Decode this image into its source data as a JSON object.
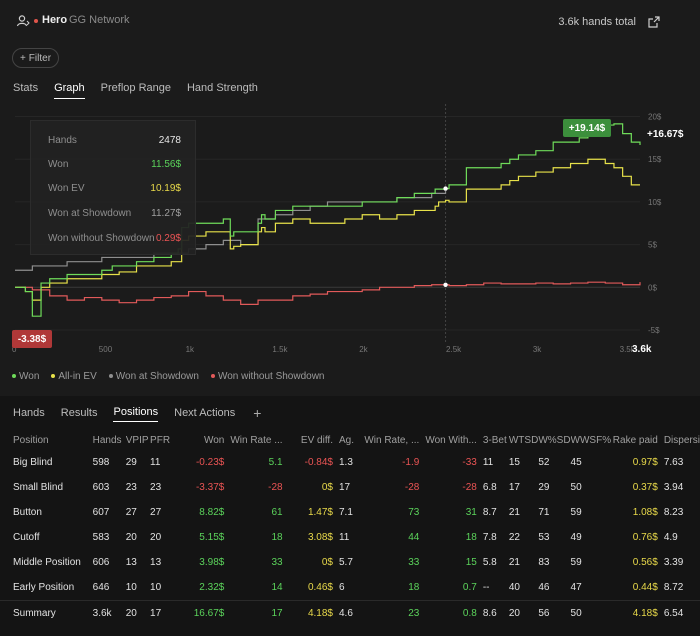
{
  "header": {
    "player": "Hero",
    "network": "GG Network",
    "hands_total": "3.6k hands total"
  },
  "filter_label": "Filter",
  "tabs": [
    "Stats",
    "Graph",
    "Preflop Range",
    "Hand Strength"
  ],
  "active_tab": "Graph",
  "tooltip": [
    {
      "label": "Hands",
      "value": "2478",
      "color": "#e6e6e6"
    },
    {
      "label": "Won",
      "value": "11.56$",
      "color": "#5bd35b"
    },
    {
      "label": "Won EV",
      "value": "10.19$",
      "color": "#e8d94a"
    },
    {
      "label": "Won at Showdown",
      "value": "11.27$",
      "color": "#a0a0a0"
    },
    {
      "label": "Won without Showdown",
      "value": "0.29$",
      "color": "#ea5454"
    }
  ],
  "chart_data": {
    "type": "line",
    "x_ticks": [
      "0",
      "500",
      "1k",
      "1.5k",
      "2k",
      "2.5k",
      "3k",
      "3.5k",
      "3.6k"
    ],
    "y_ticks": [
      "20$",
      "15$",
      "10$",
      "5$",
      "0$",
      "-5$"
    ],
    "ylim": [
      -5,
      21
    ],
    "xlim": [
      0,
      3600
    ],
    "min_label": "-3.38$",
    "max_label": "+19.14$",
    "last_label": "+16.67$",
    "series": [
      {
        "name": "Won",
        "color": "#6fdc5a",
        "x": [
          0,
          60,
          100,
          150,
          200,
          300,
          400,
          500,
          560,
          600,
          700,
          800,
          900,
          940,
          960,
          1000,
          1100,
          1200,
          1240,
          1260,
          1300,
          1400,
          1420,
          1440,
          1500,
          1600,
          1700,
          1800,
          1900,
          2000,
          2100,
          2200,
          2300,
          2400,
          2420,
          2440,
          2480,
          2500,
          2600,
          2700,
          2800,
          2850,
          2900,
          3000,
          3100,
          3200,
          3250,
          3300,
          3400,
          3450,
          3500,
          3550,
          3600
        ],
        "y": [
          0,
          -0.5,
          -3.38,
          0.5,
          1,
          1.5,
          1.5,
          2,
          2.5,
          2.5,
          3,
          3.5,
          4,
          4.5,
          7,
          7.5,
          7.5,
          8,
          6,
          6.5,
          6.5,
          7.5,
          8.5,
          8,
          9,
          9.5,
          9.5,
          9.5,
          9.5,
          10,
          10,
          10.5,
          11,
          11,
          11.5,
          11.5,
          11.56,
          12,
          14,
          14,
          14.5,
          15,
          15.5,
          16,
          17,
          17,
          17.5,
          19.14,
          19,
          19.14,
          18,
          17,
          16.67
        ]
      },
      {
        "name": "All-in EV",
        "color": "#e8e24a",
        "x": [
          0,
          60,
          100,
          150,
          200,
          300,
          400,
          500,
          560,
          600,
          700,
          800,
          900,
          940,
          960,
          1000,
          1100,
          1200,
          1240,
          1260,
          1300,
          1400,
          1420,
          1440,
          1500,
          1600,
          1700,
          1800,
          1900,
          2000,
          2100,
          2200,
          2300,
          2400,
          2420,
          2440,
          2480,
          2500,
          2600,
          2700,
          2800,
          2850,
          2900,
          3000,
          3100,
          3200,
          3250,
          3300,
          3400,
          3450,
          3500,
          3550,
          3600
        ],
        "y": [
          0,
          -0.5,
          -1.5,
          0,
          0.5,
          1,
          1,
          1.5,
          1.5,
          1.8,
          2.5,
          2.5,
          3,
          3,
          5.5,
          6,
          6.5,
          6.5,
          4.5,
          4.8,
          5,
          6.5,
          7,
          6.5,
          7.5,
          8,
          7.5,
          7.5,
          8,
          8.5,
          8,
          8.5,
          9,
          9,
          9.5,
          10,
          10.19,
          10,
          11.5,
          11.5,
          12,
          12.5,
          13,
          13.5,
          14,
          14.5,
          14.5,
          15,
          14.5,
          14,
          13,
          12,
          12
        ]
      },
      {
        "name": "Won at Showdown",
        "color": "#8f8f8f",
        "x": [
          0,
          100,
          200,
          300,
          400,
          500,
          600,
          700,
          800,
          900,
          1000,
          1100,
          1200,
          1300,
          1400,
          1500,
          1600,
          1700,
          1800,
          1900,
          2000,
          2100,
          2200,
          2300,
          2400,
          2480
        ],
        "y": [
          2,
          2.5,
          2.5,
          3,
          3,
          3.5,
          3.5,
          3.5,
          4,
          4,
          4.5,
          5,
          5.5,
          5,
          8,
          8.5,
          9,
          9.5,
          10,
          10,
          10,
          10,
          10.5,
          10.5,
          11,
          11.27
        ]
      },
      {
        "name": "Won without Showdown",
        "color": "#e25a5a",
        "x": [
          0,
          100,
          200,
          300,
          400,
          500,
          600,
          700,
          800,
          900,
          1000,
          1100,
          1200,
          1300,
          1400,
          1500,
          1600,
          1700,
          1800,
          1900,
          2000,
          2100,
          2200,
          2300,
          2400,
          2500,
          2600,
          2700,
          2800,
          2900,
          3000,
          3100,
          3200,
          3300,
          3400,
          3500,
          3600
        ],
        "y": [
          0,
          -0.3,
          -1,
          -1.5,
          -1.2,
          -1.5,
          -1.8,
          -1.5,
          -1.2,
          -1,
          -0.5,
          -1,
          -1.5,
          -2,
          -1.5,
          -1.5,
          -1,
          -0.8,
          -0.5,
          -0.5,
          -0.3,
          0,
          0,
          0.2,
          0.3,
          0.2,
          0.3,
          0.5,
          0.4,
          0.4,
          0.5,
          0.4,
          0.5,
          0.6,
          0.5,
          0.3,
          0.6
        ]
      }
    ]
  },
  "legend": [
    {
      "label": "Won",
      "color": "#6fdc5a"
    },
    {
      "label": "All-in EV",
      "color": "#e8e24a"
    },
    {
      "label": "Won at Showdown",
      "color": "#8f8f8f"
    },
    {
      "label": "Won without Showdown",
      "color": "#e25a5a"
    }
  ],
  "bottom_tabs": [
    "Hands",
    "Results",
    "Positions",
    "Next Actions"
  ],
  "active_bottom_tab": "Positions",
  "table": {
    "columns": [
      "Position",
      "Hands",
      "VPIP",
      "PFR",
      "Won",
      "Win Rate ...",
      "EV diff.",
      "Ag.",
      "Win Rate, ...",
      "Won With...",
      "3-Bet",
      "WTSD",
      "W%SD",
      "WWSF%",
      "Rake paid",
      "Dispersi"
    ],
    "rows": [
      [
        "Big Blind",
        "598",
        "29",
        "11",
        "-0.23$",
        "5.1",
        "-0.84$",
        "1.3",
        "-1.9",
        "-33",
        "11",
        "15",
        "52",
        "45",
        "0.97$",
        "7.63"
      ],
      [
        "Small Blind",
        "603",
        "23",
        "23",
        "-3.37$",
        "-28",
        "0$",
        "17",
        "-28",
        "-28",
        "6.8",
        "17",
        "29",
        "50",
        "0.37$",
        "3.94"
      ],
      [
        "Button",
        "607",
        "27",
        "27",
        "8.82$",
        "61",
        "1.47$",
        "7.1",
        "73",
        "31",
        "8.7",
        "21",
        "71",
        "59",
        "1.08$",
        "8.23"
      ],
      [
        "Cutoff",
        "583",
        "20",
        "20",
        "5.15$",
        "18",
        "3.08$",
        "11",
        "44",
        "18",
        "7.8",
        "22",
        "53",
        "49",
        "0.76$",
        "4.9"
      ],
      [
        "Middle Position",
        "606",
        "13",
        "13",
        "3.98$",
        "33",
        "0$",
        "5.7",
        "33",
        "15",
        "5.8",
        "21",
        "83",
        "59",
        "0.56$",
        "3.39"
      ],
      [
        "Early Position",
        "646",
        "10",
        "10",
        "2.32$",
        "14",
        "0.46$",
        "6",
        "18",
        "0.7",
        "--",
        "40",
        "46",
        "47",
        "0.44$",
        "8.72"
      ]
    ],
    "summary": [
      "Summary",
      "3.6k",
      "20",
      "17",
      "16.67$",
      "17",
      "4.18$",
      "4.6",
      "23",
      "0.8",
      "8.6",
      "20",
      "56",
      "50",
      "4.18$",
      "6.54"
    ]
  }
}
